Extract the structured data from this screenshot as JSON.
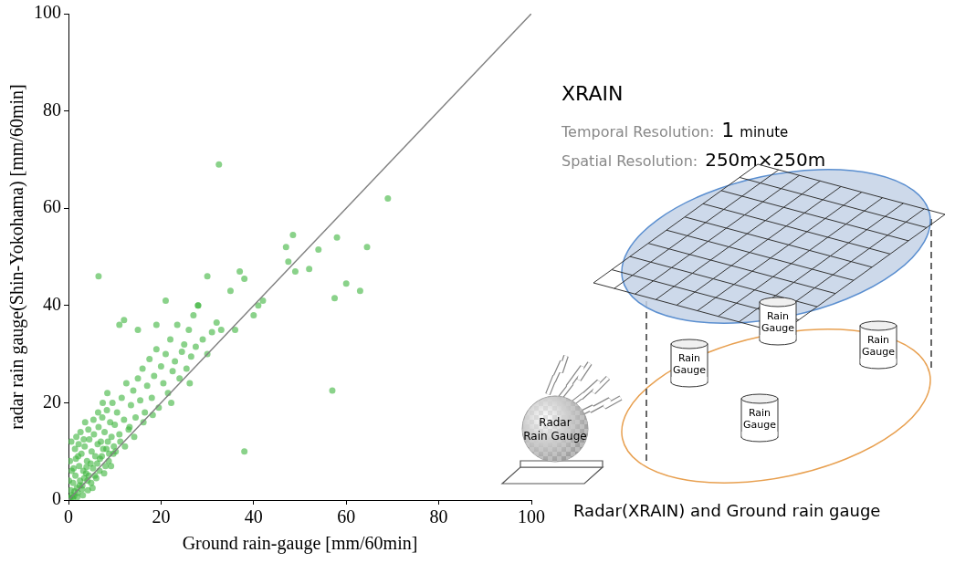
{
  "chart_data": {
    "type": "scatter",
    "x_label": "Ground rain-gauge [mm/60min]",
    "y_label": "radar rain gauge(Shin-Yokohama) [mm/60min]",
    "xlim": [
      0,
      100
    ],
    "xticks": [
      0,
      20,
      40,
      60,
      80,
      100
    ],
    "ylim": [
      0,
      100
    ],
    "yticks": [
      0,
      20,
      40,
      60,
      80,
      100
    ],
    "grid": false,
    "series": [
      {
        "type": "scatter",
        "color": "#3cb43c",
        "marker": "circle",
        "x": [
          0.2,
          0.5,
          0.8,
          1.0,
          1.2,
          1.5,
          1.8,
          2.0,
          2.3,
          2.5,
          2.8,
          3.0,
          3.2,
          3.5,
          3.8,
          4.0,
          4.2,
          4.5,
          4.8,
          5.0,
          5.3,
          5.5,
          5.8,
          6.0,
          6.3,
          6.5,
          6.8,
          7.0,
          7.3,
          7.5,
          0.3,
          0.6,
          1.1,
          1.4,
          1.7,
          2.1,
          2.6,
          3.1,
          3.6,
          4.1,
          7.8,
          8.0,
          8.3,
          8.5,
          8.8,
          9.0,
          9.3,
          9.5,
          9.8,
          10.0,
          10.5,
          11.0,
          11.5,
          12.0,
          12.5,
          13.0,
          13.5,
          14.0,
          14.5,
          15.0,
          15.5,
          16.0,
          16.5,
          17.0,
          17.5,
          18.0,
          18.5,
          19.0,
          19.5,
          20.0,
          20.5,
          21.0,
          21.5,
          22.0,
          22.5,
          23.0,
          23.5,
          24.0,
          24.5,
          25.0,
          25.5,
          26.0,
          26.5,
          27.0,
          27.5,
          28.0,
          29.0,
          30.0,
          31.0,
          32.0,
          32.5,
          6.5,
          57.0,
          38.0,
          69.0,
          58.0,
          60.0,
          63.0,
          64.5,
          57.5,
          54.0,
          48.5,
          47.0,
          49.0,
          47.5,
          52.0,
          42.0,
          41.0,
          37.0,
          38.0,
          35.0,
          30.0,
          28.0,
          21.0,
          12.0,
          11.0,
          15.0,
          19.0,
          33.0,
          36.0,
          0.4,
          0.9,
          1.3,
          1.9,
          2.4,
          2.9,
          3.4,
          3.9,
          4.4,
          4.9,
          5.2,
          5.7,
          6.2,
          6.7,
          7.2,
          7.7,
          8.2,
          8.7,
          9.2,
          9.7,
          0.1,
          0.7,
          1.6,
          2.2,
          3.3,
          4.3,
          5.4,
          6.4,
          7.4,
          8.4,
          10.2,
          11.2,
          12.2,
          13.2,
          14.2,
          16.2,
          18.2,
          22.2,
          26.2,
          40.0
        ],
        "values": [
          0.5,
          2.0,
          1.0,
          3.5,
          0.8,
          5.0,
          2.5,
          1.5,
          7.0,
          4.0,
          9.5,
          3.0,
          6.0,
          11.0,
          5.5,
          8.0,
          2.0,
          12.5,
          7.5,
          10.0,
          6.5,
          13.5,
          9.0,
          4.5,
          11.5,
          15.0,
          8.5,
          12.0,
          17.0,
          10.5,
          8.0,
          12.0,
          6.5,
          10.5,
          13.0,
          9.0,
          14.0,
          1.0,
          16.0,
          4.0,
          14.0,
          7.0,
          18.5,
          12.0,
          9.5,
          16.0,
          13.0,
          20.0,
          11.0,
          15.5,
          18.0,
          13.5,
          21.0,
          16.5,
          24.0,
          14.5,
          19.5,
          22.5,
          17.0,
          25.0,
          20.5,
          27.0,
          18.0,
          23.5,
          29.0,
          21.0,
          25.5,
          31.0,
          19.0,
          27.5,
          24.0,
          30.0,
          22.0,
          33.0,
          26.5,
          28.5,
          36.0,
          25.0,
          30.5,
          32.0,
          27.0,
          35.0,
          29.5,
          38.0,
          31.5,
          40.0,
          33.0,
          30.0,
          34.5,
          36.5,
          69.0,
          46.0,
          22.5,
          10.0,
          62.0,
          54.0,
          44.5,
          43.0,
          52.0,
          41.5,
          51.5,
          54.5,
          52.0,
          47.0,
          49.0,
          47.5,
          41.0,
          40.0,
          47.0,
          45.5,
          43.0,
          46.0,
          40.0,
          41.0,
          37.0,
          36.0,
          35.0,
          36.0,
          35.0,
          35.0,
          0.2,
          0.4,
          1.8,
          0.6,
          3.0,
          2.2,
          4.5,
          6.8,
          5.0,
          3.5,
          2.5,
          5.0,
          7.5,
          6.0,
          9.0,
          5.5,
          10.5,
          8.0,
          7.0,
          9.5,
          4.0,
          6.0,
          8.5,
          11.5,
          12.5,
          14.5,
          16.5,
          18.0,
          20.0,
          22.0,
          10.0,
          12.0,
          11.0,
          15.0,
          13.0,
          16.0,
          17.5,
          20.0,
          24.0,
          38.0
        ]
      },
      {
        "type": "line",
        "color": "#808080",
        "line_style": "solid",
        "x": [
          0,
          100
        ],
        "values": [
          0,
          100
        ]
      }
    ]
  },
  "diagram": {
    "title": "XRAIN",
    "temporal_resolution": {
      "label": "Temporal Resolution:",
      "value": "1",
      "unit": "minute"
    },
    "spatial_resolution": {
      "label": "Spatial Resolution:",
      "value": "250m×250m"
    },
    "radar_label": "Radar Rain Gauge",
    "gauges": [
      "Rain Gauge",
      "Rain Gauge",
      "Rain Gauge",
      "Rain Gauge"
    ],
    "caption": "Radar(XRAIN) and Ground rain gauge"
  }
}
